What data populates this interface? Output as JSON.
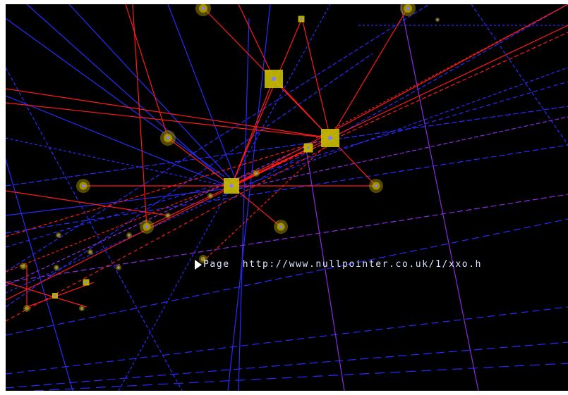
{
  "scene": {
    "background": "#000000",
    "colors": {
      "blue_line": "#2a2aff",
      "red_line": "#ff1a1a",
      "purple_line": "#8a2be2",
      "node_square": "#c8c000",
      "node_glow": "#b8a400",
      "node_core": "#8080ff"
    },
    "label": {
      "icon": "pointer-arrow-icon",
      "title": "Page",
      "url": "http://www.nullpointer.co.uk/1/xxo.h"
    }
  }
}
